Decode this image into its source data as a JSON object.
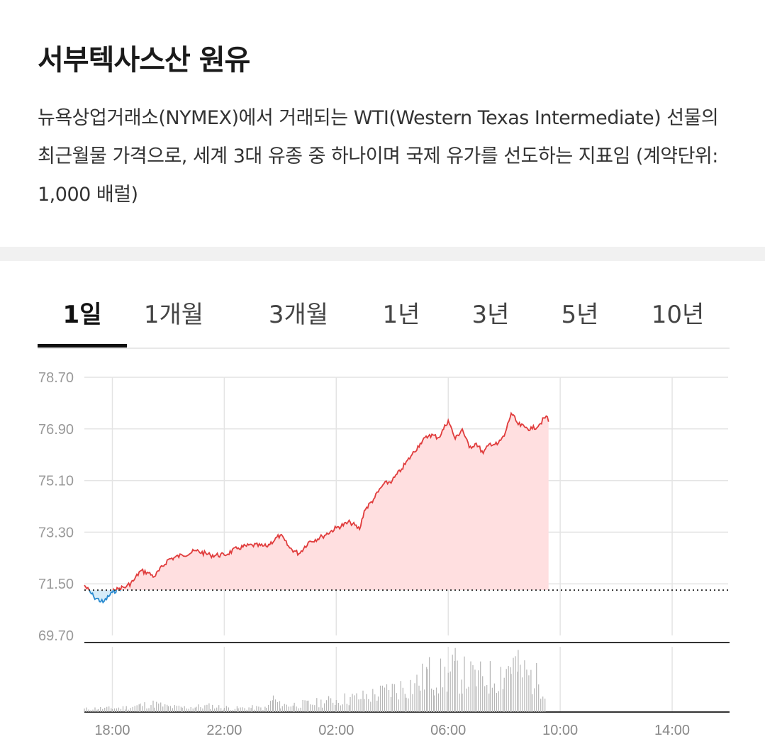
{
  "page": {
    "title": "서부텍사스산 원유",
    "description": "뉴욕상업거래소(NYMEX)에서 거래되는 WTI(Western Texas Intermediate) 선물의 최근월물 가격으로, 세계 3대 유종 중 하나이며 국제 유가를 선도하는 지표임 (계약단위: 1,000 배럴)"
  },
  "tabs": [
    {
      "label": "1일",
      "active": true
    },
    {
      "label": "1개월",
      "active": false
    },
    {
      "label": "3개월",
      "active": false
    },
    {
      "label": "1년",
      "active": false
    },
    {
      "label": "3년",
      "active": false
    },
    {
      "label": "5년",
      "active": false
    },
    {
      "label": "10년",
      "active": false
    }
  ],
  "colors": {
    "up_line": "#e03c3c",
    "up_fill": "#ffdfe0",
    "down_line": "#2a8bd0",
    "down_fill": "#d6ecf9",
    "grid": "#e4e4e4",
    "volume": "#b5b5b5"
  },
  "chart_data": {
    "type": "area",
    "y_ticks": [
      "78.70",
      "76.90",
      "75.10",
      "73.30",
      "71.50",
      "69.70"
    ],
    "ylim": [
      69.7,
      78.7
    ],
    "x_ticks": [
      "18:00",
      "22:00",
      "02:00",
      "06:00",
      "10:00",
      "14:00"
    ],
    "xlim": [
      "17:00",
      "16:00"
    ],
    "reference_value": 71.28,
    "x": [
      "17:00",
      "17:20",
      "17:40",
      "18:00",
      "18:15",
      "18:30",
      "18:45",
      "19:00",
      "19:15",
      "19:30",
      "20:00",
      "20:30",
      "21:00",
      "21:30",
      "22:00",
      "22:30",
      "23:00",
      "23:30",
      "00:00",
      "00:20",
      "00:40",
      "01:00",
      "01:30",
      "02:00",
      "02:30",
      "02:50",
      "03:00",
      "03:20",
      "03:40",
      "04:00",
      "04:20",
      "04:40",
      "05:00",
      "05:20",
      "05:40",
      "06:00",
      "06:15",
      "06:30",
      "06:45",
      "07:00",
      "07:15",
      "07:30",
      "07:45",
      "08:00",
      "08:15",
      "08:30",
      "08:45",
      "09:00",
      "09:15",
      "09:30",
      "09:35"
    ],
    "values": [
      71.45,
      71.05,
      70.85,
      71.2,
      71.35,
      71.4,
      71.6,
      71.95,
      71.9,
      71.75,
      72.35,
      72.5,
      72.65,
      72.5,
      72.5,
      72.75,
      72.85,
      72.8,
      73.2,
      72.75,
      72.55,
      72.95,
      73.15,
      73.45,
      73.65,
      73.4,
      74.05,
      74.45,
      74.95,
      75.1,
      75.5,
      75.95,
      76.4,
      76.7,
      76.6,
      77.2,
      76.55,
      76.9,
      76.25,
      76.4,
      76.05,
      76.4,
      76.35,
      76.65,
      77.45,
      77.05,
      76.95,
      76.9,
      77.05,
      77.35,
      77.15
    ],
    "volume": {
      "x": [
        "17:00",
        "17:30",
        "18:00",
        "18:30",
        "19:00",
        "19:30",
        "20:00",
        "20:30",
        "21:00",
        "21:30",
        "22:00",
        "22:30",
        "23:00",
        "23:30",
        "23:45",
        "00:00",
        "00:30",
        "01:00",
        "01:30",
        "02:00",
        "02:30",
        "03:00",
        "03:30",
        "04:00",
        "04:30",
        "05:00",
        "05:15",
        "05:30",
        "06:00",
        "06:15",
        "06:30",
        "07:00",
        "07:30",
        "08:00",
        "08:15",
        "08:30",
        "09:00",
        "09:30"
      ],
      "values": [
        4,
        5,
        5,
        6,
        9,
        11,
        7,
        6,
        7,
        8,
        6,
        5,
        6,
        5,
        18,
        9,
        10,
        11,
        13,
        16,
        18,
        20,
        24,
        30,
        34,
        40,
        52,
        46,
        48,
        56,
        50,
        44,
        46,
        54,
        66,
        56,
        46,
        36
      ]
    }
  }
}
